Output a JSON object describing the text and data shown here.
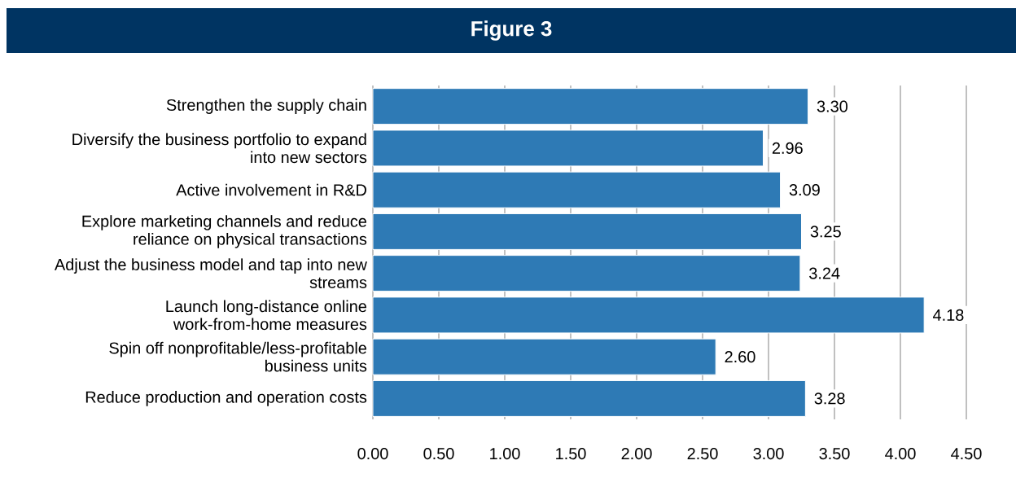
{
  "chart_data": {
    "type": "bar",
    "orientation": "horizontal",
    "title": "Figure 3",
    "categories": [
      "Strengthen the supply chain",
      "Diversify the business portfolio to expand into new sectors",
      "Active involvement in R&D",
      "Explore marketing channels and reduce reliance on physical transactions",
      "Adjust the business model and tap into new streams",
      "Launch long-distance online work-from-home measures",
      "Spin off nonprofitable/less-profitable business units",
      "Reduce production and operation costs"
    ],
    "values": [
      3.3,
      2.96,
      3.09,
      3.25,
      3.24,
      4.18,
      2.6,
      3.28
    ],
    "color": "#2e7ab5",
    "xlim": [
      0,
      4.5
    ],
    "xticks": [
      {
        "value": 0,
        "label": "0.00"
      },
      {
        "value": 0.5,
        "label": "0.50"
      },
      {
        "value": 1,
        "label": "1.00"
      },
      {
        "value": 1.5,
        "label": "1.50"
      },
      {
        "value": 2,
        "label": "2.00"
      },
      {
        "value": 2.5,
        "label": "2.50"
      },
      {
        "value": 3,
        "label": "3.00"
      },
      {
        "value": 3.5,
        "label": "3.50"
      },
      {
        "value": 4,
        "label": "4.00"
      },
      {
        "value": 4.5,
        "label": "4.50"
      }
    ],
    "grid": "x",
    "value_labels": [
      "3.30",
      "2.96",
      "3.09",
      "3.25",
      "3.24",
      "4.18",
      "2.60",
      "3.28"
    ]
  }
}
